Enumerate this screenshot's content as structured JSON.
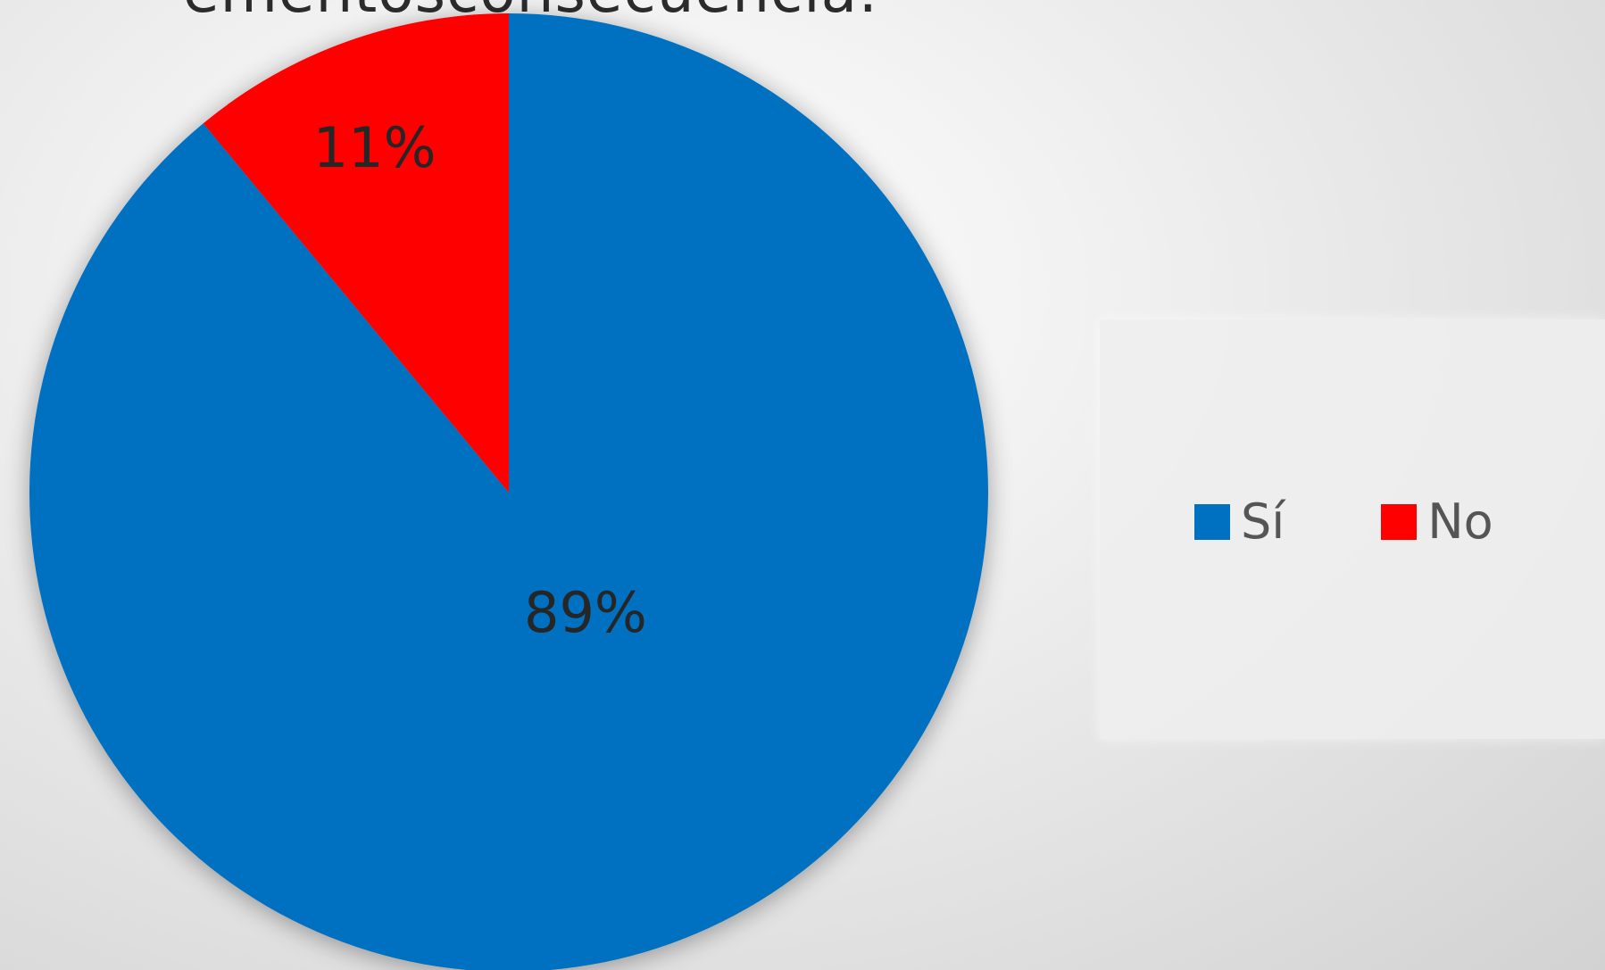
{
  "colors": {
    "si": "#0070C0",
    "no": "#FF0000"
  },
  "chart_data": {
    "type": "pie",
    "series": [
      {
        "values": [
          89,
          11
        ]
      }
    ],
    "categories": [
      "Sí",
      "No"
    ],
    "data_labels": [
      "89%",
      "11%"
    ],
    "legend": {
      "position": "right",
      "items": [
        "Sí",
        "No"
      ]
    },
    "start_angle": "12 o'clock",
    "direction": "clockwise"
  }
}
